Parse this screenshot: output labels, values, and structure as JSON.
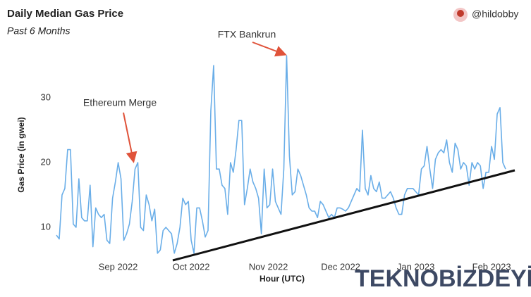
{
  "chart_data": {
    "type": "line",
    "title": "Daily Median Gas Price",
    "subtitle": "Past 6 Months",
    "author": "@hildobby",
    "x_label": "Hour (UTC)",
    "y_label": "Gas Price (in gwei)",
    "watermark": "TEKNOBİZDEYİZ",
    "color": "#6aaee8",
    "x": [
      0,
      1,
      2,
      3,
      4,
      5,
      6,
      7,
      8,
      9,
      10,
      11,
      12,
      13,
      14,
      15,
      16,
      17,
      18,
      19,
      20,
      21,
      22,
      23,
      24,
      25,
      26,
      27,
      28,
      29,
      30,
      31,
      32,
      33,
      34,
      35,
      36,
      37,
      38,
      39,
      40,
      41,
      42,
      43,
      44,
      45,
      46,
      47,
      48,
      49,
      50,
      51,
      52,
      53,
      54,
      55,
      56,
      57,
      58,
      59,
      60,
      61,
      62,
      63,
      64,
      65,
      66,
      67,
      68,
      69,
      70,
      71,
      72,
      73,
      74,
      75,
      76,
      77,
      78,
      79,
      80,
      81,
      82,
      83,
      84,
      85,
      86,
      87,
      88,
      89,
      90,
      91,
      92,
      93,
      94,
      95,
      96,
      97,
      98,
      99,
      100,
      101,
      102,
      103,
      104,
      105,
      106,
      107,
      108,
      109,
      110,
      111,
      112,
      113,
      114,
      115,
      116,
      117,
      118,
      119,
      120,
      121,
      122,
      123,
      124,
      125,
      126,
      127,
      128,
      129,
      130,
      131,
      132,
      133,
      134,
      135,
      136,
      137,
      138,
      139,
      140,
      141,
      142,
      143,
      144,
      145,
      146,
      147,
      148,
      149,
      150,
      151,
      152,
      153,
      154,
      155,
      156,
      157,
      158,
      159,
      160
    ],
    "values": [
      8.8,
      8.2,
      15,
      16,
      22,
      22,
      10.5,
      10,
      17.5,
      11.5,
      11,
      11,
      16.5,
      7,
      13,
      12,
      11.5,
      12,
      8,
      7.5,
      14.5,
      17,
      20,
      17.5,
      8,
      9,
      10.5,
      14,
      19,
      20,
      10,
      9.5,
      15,
      13.5,
      11,
      12.8,
      6,
      6.5,
      9.5,
      10,
      9.5,
      9,
      6,
      7.5,
      10,
      14.5,
      13.5,
      14,
      8,
      6,
      13,
      13,
      11,
      8.5,
      9.5,
      28,
      35,
      19,
      19,
      16.5,
      16,
      12,
      20,
      18.5,
      22,
      26.5,
      26.5,
      13.5,
      16,
      19,
      17,
      16,
      14.5,
      9,
      19,
      13,
      13.5,
      19,
      14,
      13,
      12,
      19,
      36.5,
      21,
      15,
      15.5,
      19,
      18,
      16.5,
      15,
      13,
      12.5,
      12.5,
      11.5,
      14,
      13.5,
      12.5,
      11.5,
      12,
      11.5,
      13,
      13,
      12.8,
      12.5,
      13,
      14,
      15,
      16,
      15.5,
      25,
      16,
      15,
      18,
      16,
      15.5,
      17,
      14.5,
      14.5,
      15,
      15.5,
      14.5,
      13,
      12,
      12,
      15,
      16,
      16,
      16,
      15.5,
      15,
      19,
      19.5,
      22.5,
      19,
      16,
      20.5,
      21.5,
      22,
      21.5,
      23.5,
      20,
      18.5,
      23,
      22,
      19,
      20,
      19.5,
      16.5,
      20,
      19,
      20,
      19.5,
      16,
      18.5,
      18.5,
      22.5,
      20.5,
      27.5,
      28.5,
      20,
      19
    ],
    "xlim": [
      0,
      160
    ],
    "ylim": [
      5,
      38
    ],
    "xticks": [
      {
        "value": 22,
        "label": "Sep 2022"
      },
      {
        "value": 48,
        "label": "Oct 2022"
      },
      {
        "value": 75.5,
        "label": "Nov 2022"
      },
      {
        "value": 101.25,
        "label": "Dec 2022"
      },
      {
        "value": 128,
        "label": "Jan 2023"
      },
      {
        "value": 155,
        "label": "Feb 2023"
      }
    ],
    "yticks": [
      10,
      20,
      30
    ],
    "grid": false,
    "annotations": [
      {
        "text": "Ethereum Merge",
        "color": "#e0533a"
      },
      {
        "text": "FTX Bankrun",
        "color": "#e0533a"
      }
    ]
  }
}
